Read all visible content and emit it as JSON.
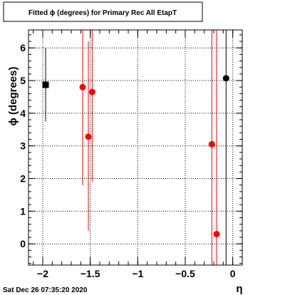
{
  "title": "Fitted ϕ (degrees) for Primary Rec All EtapT",
  "timestamp": "Sat Dec 26 07:35:20 2020",
  "colors": {
    "red": "#ff0000",
    "black": "#000000"
  },
  "chart_data": {
    "type": "scatter",
    "title": "Fitted ϕ (degrees) for Primary Rec All EtapT",
    "xlabel": "η",
    "ylabel": "ϕ (degrees)",
    "xlim": [
      -2.15,
      0.1
    ],
    "ylim": [
      -0.65,
      6.55
    ],
    "x_ticks": [
      -2,
      -1.5,
      -1,
      -0.5,
      0
    ],
    "x_tick_labels": [
      "−2",
      "−1.5",
      "−1",
      "−0.5",
      "0"
    ],
    "y_ticks": [
      0,
      1,
      2,
      3,
      4,
      5,
      6
    ],
    "y_tick_labels": [
      "0",
      "1",
      "2",
      "3",
      "4",
      "5",
      "6"
    ],
    "grid": true,
    "series": [
      {
        "marker": "square",
        "color": "#000000",
        "points": [
          {
            "x": -1.97,
            "y": 4.87,
            "ylow": 3.75,
            "yhigh": 6.0
          }
        ]
      },
      {
        "marker": "circle",
        "color": "#ff0000",
        "points": [
          {
            "x": -1.58,
            "y": 4.8,
            "ylow": 1.8,
            "yhigh": 6.55
          },
          {
            "x": -1.52,
            "y": 3.28,
            "ylow": 0.4,
            "yhigh": 6.2
          },
          {
            "x": -1.48,
            "y": 4.65,
            "ylow": 1.9,
            "yhigh": 6.55
          },
          {
            "x": -0.22,
            "y": 3.05,
            "ylow": -0.65,
            "yhigh": 6.55
          },
          {
            "x": -0.17,
            "y": 0.3,
            "ylow": -0.65,
            "yhigh": 6.55
          }
        ]
      },
      {
        "marker": "circle",
        "color": "#000000",
        "points": [
          {
            "x": -0.07,
            "y": 5.07,
            "ylow": -0.65,
            "yhigh": 6.55
          }
        ]
      }
    ]
  }
}
